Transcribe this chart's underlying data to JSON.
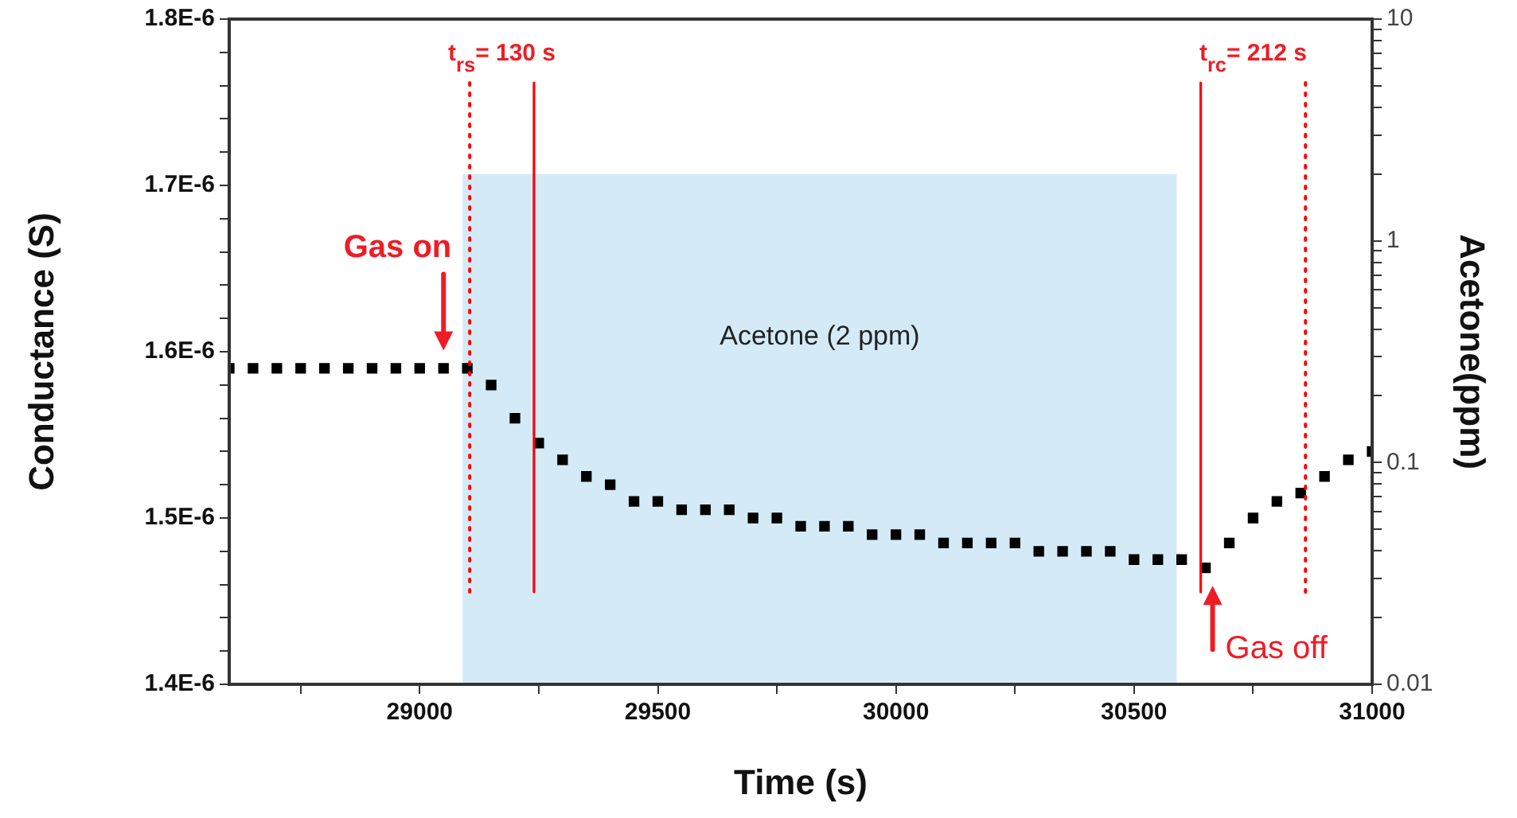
{
  "chart_data": {
    "type": "scatter",
    "xlabel": "Time (s)",
    "ylabel": "Conductance (S)",
    "y2label": "Acetone(ppm)",
    "xlim": [
      28600,
      31000
    ],
    "xticks": [
      {
        "value": 28750,
        "label": null
      },
      29000,
      {
        "value": 29250,
        "label": null
      },
      29500,
      {
        "value": 29750,
        "label": null
      },
      30000,
      {
        "value": 30250,
        "label": null
      },
      30500,
      {
        "value": 30750,
        "label": null
      },
      31000
    ],
    "ylim": [
      1.4e-06,
      1.8e-06
    ],
    "yticks": [
      {
        "value": 1.4e-06,
        "label": "1.4E-6"
      },
      {
        "value": 1.42e-06,
        "label": null
      },
      {
        "value": 1.44e-06,
        "label": null
      },
      {
        "value": 1.46e-06,
        "label": null
      },
      {
        "value": 1.48e-06,
        "label": null
      },
      {
        "value": 1.5e-06,
        "label": "1.5E-6"
      },
      {
        "value": 1.52e-06,
        "label": null
      },
      {
        "value": 1.54e-06,
        "label": null
      },
      {
        "value": 1.56e-06,
        "label": null
      },
      {
        "value": 1.58e-06,
        "label": null
      },
      {
        "value": 1.6e-06,
        "label": "1.6E-6"
      },
      {
        "value": 1.62e-06,
        "label": null
      },
      {
        "value": 1.64e-06,
        "label": null
      },
      {
        "value": 1.66e-06,
        "label": null
      },
      {
        "value": 1.68e-06,
        "label": null
      },
      {
        "value": 1.7e-06,
        "label": "1.7E-6"
      },
      {
        "value": 1.72e-06,
        "label": null
      },
      {
        "value": 1.74e-06,
        "label": null
      },
      {
        "value": 1.76e-06,
        "label": null
      },
      {
        "value": 1.78e-06,
        "label": null
      },
      {
        "value": 1.8e-06,
        "label": "1.8E-6"
      }
    ],
    "y2lim": [
      0.01,
      10
    ],
    "log": "y2",
    "y2ticks": [
      0.01,
      {
        "value": 0.02,
        "label": null
      },
      {
        "value": 0.03,
        "label": null
      },
      {
        "value": 0.04,
        "label": null
      },
      {
        "value": 0.05,
        "label": null
      },
      {
        "value": 0.06,
        "label": null
      },
      {
        "value": 0.07,
        "label": null
      },
      {
        "value": 0.08,
        "label": null
      },
      {
        "value": 0.09,
        "label": null
      },
      0.1,
      {
        "value": 0.2,
        "label": null
      },
      {
        "value": 0.3,
        "label": null
      },
      {
        "value": 0.4,
        "label": null
      },
      {
        "value": 0.5,
        "label": null
      },
      {
        "value": 0.6,
        "label": null
      },
      {
        "value": 0.7,
        "label": null
      },
      {
        "value": 0.8,
        "label": null
      },
      {
        "value": 0.9,
        "label": null
      },
      1,
      {
        "value": 2,
        "label": null
      },
      {
        "value": 3,
        "label": null
      },
      {
        "value": 4,
        "label": null
      },
      {
        "value": 5,
        "label": null
      },
      {
        "value": 6,
        "label": null
      },
      {
        "value": 7,
        "label": null
      },
      {
        "value": 8,
        "label": null
      },
      {
        "value": 9,
        "label": null
      },
      10
    ],
    "series": [
      {
        "type": "area",
        "name": "Acetone (2 ppm)",
        "axis": "y2",
        "color": "#d4ebf7",
        "x": [
          29090,
          30590
        ],
        "values": [
          2,
          2
        ]
      },
      {
        "color": "#000000",
        "marker": "square",
        "x": [
          28600,
          28650,
          28700,
          28750,
          28800,
          28850,
          28900,
          28950,
          29000,
          29050,
          29100,
          29150,
          29200,
          29250,
          29300,
          29350,
          29400,
          29450,
          29500,
          29550,
          29600,
          29650,
          29700,
          29750,
          29800,
          29850,
          29900,
          29950,
          30000,
          30050,
          30100,
          30150,
          30200,
          30250,
          30300,
          30350,
          30400,
          30450,
          30500,
          30550,
          30600,
          30650,
          30700,
          30750,
          30800,
          30850,
          30900,
          30950,
          31000
        ],
        "values": [
          1.59e-06,
          1.59e-06,
          1.59e-06,
          1.59e-06,
          1.59e-06,
          1.59e-06,
          1.59e-06,
          1.59e-06,
          1.59e-06,
          1.59e-06,
          1.59e-06,
          1.58e-06,
          1.56e-06,
          1.545e-06,
          1.535e-06,
          1.525e-06,
          1.52e-06,
          1.51e-06,
          1.51e-06,
          1.505e-06,
          1.505e-06,
          1.505e-06,
          1.5e-06,
          1.5e-06,
          1.495e-06,
          1.495e-06,
          1.495e-06,
          1.49e-06,
          1.49e-06,
          1.49e-06,
          1.485e-06,
          1.485e-06,
          1.485e-06,
          1.485e-06,
          1.48e-06,
          1.48e-06,
          1.48e-06,
          1.48e-06,
          1.475e-06,
          1.475e-06,
          1.475e-06,
          1.47e-06,
          1.485e-06,
          1.5e-06,
          1.51e-06,
          1.515e-06,
          1.525e-06,
          1.535e-06,
          1.54e-06
        ]
      }
    ],
    "ref_lines": [
      {
        "axis": "x",
        "value": 29105,
        "color": "#ff0000",
        "line_style": "dotted"
      },
      {
        "axis": "x",
        "value": 29240,
        "color": "#ff0000",
        "line_style": "solid"
      },
      {
        "axis": "x",
        "value": 30640,
        "color": "#ff0000",
        "line_style": "solid"
      },
      {
        "axis": "x",
        "value": 30860,
        "color": "#ff0000",
        "line_style": "dotted"
      }
    ],
    "annotations": [
      "t$_{rs}$= 130 s",
      "t$_{rc}$= 212 s",
      {
        "text": "Gas on",
        "x": 29050,
        "y": 1.595e-06
      },
      {
        "text": "Gas off",
        "x": 30665,
        "y": 1.465e-06
      }
    ]
  }
}
